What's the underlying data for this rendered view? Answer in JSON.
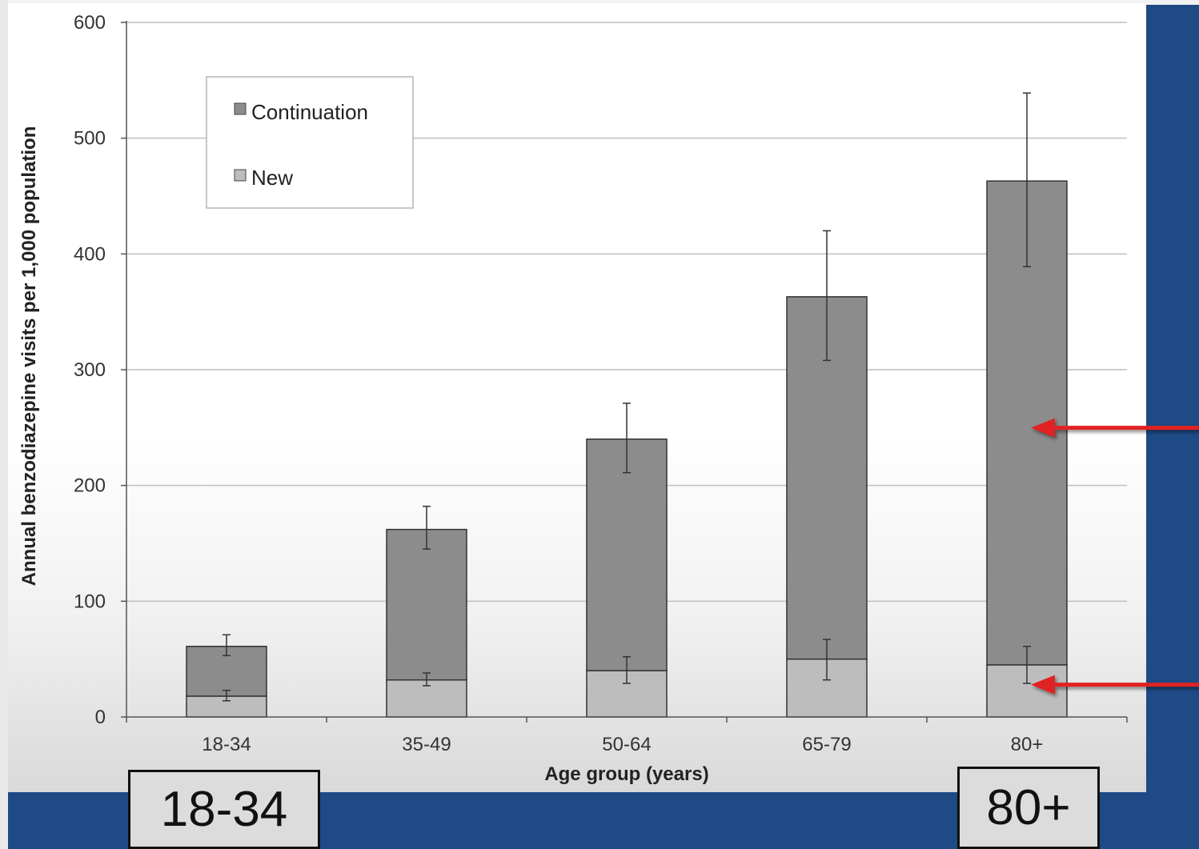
{
  "chart_data": {
    "type": "bar",
    "stacked": true,
    "categories": [
      "18-34",
      "35-49",
      "50-64",
      "65-79",
      "80+"
    ],
    "series": [
      {
        "name": "New",
        "values": [
          18,
          32,
          40,
          50,
          45
        ],
        "error_low": [
          14,
          27,
          29,
          32,
          29
        ],
        "error_high": [
          23,
          38,
          52,
          67,
          61
        ],
        "color": "#bdbdbd"
      },
      {
        "name": "Continuation",
        "values": [
          43,
          130,
          200,
          313,
          418
        ],
        "error_low": [
          53,
          145,
          211,
          308,
          389
        ],
        "error_high": [
          71,
          182,
          271,
          420,
          539
        ],
        "color": "#8c8c8c"
      }
    ],
    "xlabel": "Age group (years)",
    "ylabel": "Annual benzodiazepine visits per 1,000 population",
    "ylim": [
      0,
      600
    ],
    "yticks": [
      0,
      100,
      200,
      300,
      400,
      500,
      600
    ],
    "grid": true,
    "legend": {
      "position": "top-left",
      "order": [
        "Continuation",
        "New"
      ]
    },
    "annotations": [
      {
        "type": "arrow",
        "color": "#e02020",
        "points_to": "80+ Continuation"
      },
      {
        "type": "arrow",
        "color": "#e02020",
        "points_to": "80+ New"
      }
    ]
  },
  "callouts": {
    "left": "18-34",
    "right": "80+"
  },
  "colors": {
    "background": "#1e4a85",
    "arrow": "#e02020"
  }
}
